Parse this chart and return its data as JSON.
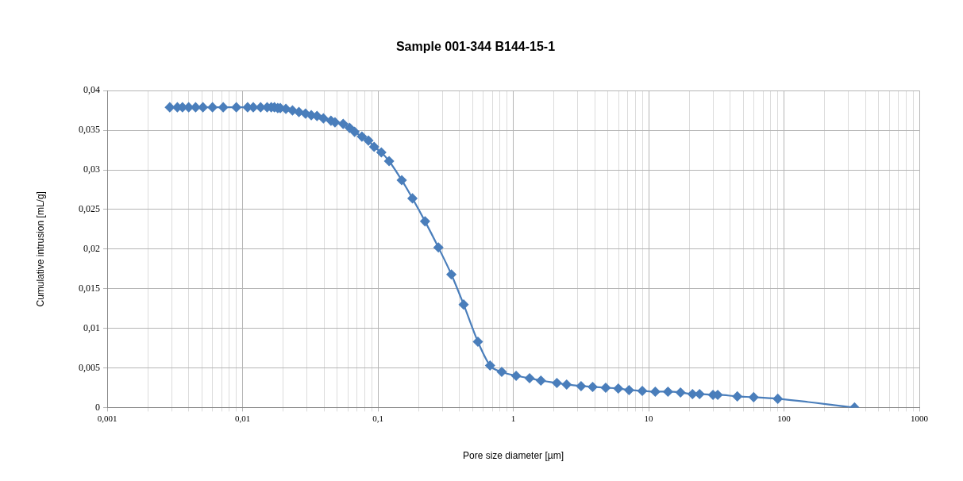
{
  "chart_data": {
    "type": "line",
    "title": "Sample 001-344 B144-15-1",
    "xlabel": "Pore size diameter [µm]",
    "ylabel": "Cumulative intrusion [mL/g]",
    "log": "x",
    "grid": true,
    "legend": false,
    "marker": "diamond",
    "line_style": "solid",
    "xlim": [
      0.001,
      1000
    ],
    "xticks": [
      {
        "value": 0.001,
        "label": "0,001"
      },
      {
        "value": 0.002,
        "label": null
      },
      {
        "value": 0.003,
        "label": null
      },
      {
        "value": 0.004,
        "label": null
      },
      {
        "value": 0.005,
        "label": null
      },
      {
        "value": 0.006,
        "label": null
      },
      {
        "value": 0.007,
        "label": null
      },
      {
        "value": 0.008,
        "label": null
      },
      {
        "value": 0.009,
        "label": null
      },
      {
        "value": 0.01,
        "label": "0,01"
      },
      {
        "value": 0.02,
        "label": null
      },
      {
        "value": 0.03,
        "label": null
      },
      {
        "value": 0.04,
        "label": null
      },
      {
        "value": 0.05,
        "label": null
      },
      {
        "value": 0.06,
        "label": null
      },
      {
        "value": 0.07,
        "label": null
      },
      {
        "value": 0.08,
        "label": null
      },
      {
        "value": 0.09,
        "label": null
      },
      {
        "value": 0.1,
        "label": "0,1"
      },
      {
        "value": 0.2,
        "label": null
      },
      {
        "value": 0.3,
        "label": null
      },
      {
        "value": 0.4,
        "label": null
      },
      {
        "value": 0.5,
        "label": null
      },
      {
        "value": 0.6,
        "label": null
      },
      {
        "value": 0.7,
        "label": null
      },
      {
        "value": 0.8,
        "label": null
      },
      {
        "value": 0.9,
        "label": null
      },
      1,
      {
        "value": 2,
        "label": null
      },
      {
        "value": 3,
        "label": null
      },
      {
        "value": 4,
        "label": null
      },
      {
        "value": 5,
        "label": null
      },
      {
        "value": 6,
        "label": null
      },
      {
        "value": 7,
        "label": null
      },
      {
        "value": 8,
        "label": null
      },
      {
        "value": 9,
        "label": null
      },
      10,
      {
        "value": 20,
        "label": null
      },
      {
        "value": 30,
        "label": null
      },
      {
        "value": 40,
        "label": null
      },
      {
        "value": 50,
        "label": null
      },
      {
        "value": 60,
        "label": null
      },
      {
        "value": 70,
        "label": null
      },
      {
        "value": 80,
        "label": null
      },
      {
        "value": 90,
        "label": null
      },
      100,
      {
        "value": 200,
        "label": null
      },
      {
        "value": 300,
        "label": null
      },
      {
        "value": 400,
        "label": null
      },
      {
        "value": 500,
        "label": null
      },
      {
        "value": 600,
        "label": null
      },
      {
        "value": 700,
        "label": null
      },
      {
        "value": 800,
        "label": null
      },
      {
        "value": 900,
        "label": null
      },
      1000
    ],
    "ylim": [
      0,
      0.04
    ],
    "yticks": [
      0,
      {
        "value": 0.005,
        "label": "0,005"
      },
      {
        "value": 0.01,
        "label": "0,01"
      },
      {
        "value": 0.015,
        "label": "0,015"
      },
      {
        "value": 0.02,
        "label": "0,02"
      },
      {
        "value": 0.025,
        "label": "0,025"
      },
      {
        "value": 0.03,
        "label": "0,03"
      },
      {
        "value": 0.035,
        "label": "0,035"
      },
      {
        "value": 0.04,
        "label": "0,04"
      }
    ],
    "series": [
      {
        "color": "#4a7ebb",
        "x": [
          0.0029,
          0.0033,
          0.0036,
          0.004,
          0.0045,
          0.0051,
          0.006,
          0.0072,
          0.009,
          0.0109,
          0.012,
          0.0136,
          0.0152,
          0.0163,
          0.0172,
          0.0182,
          0.019,
          0.0209,
          0.0234,
          0.0261,
          0.0292,
          0.0322,
          0.0355,
          0.0396,
          0.045,
          0.0482,
          0.0554,
          0.0618,
          0.0673,
          0.0762,
          0.0851,
          0.0938,
          0.106,
          0.121,
          0.15,
          0.18,
          0.223,
          0.28,
          0.349,
          0.43,
          0.548,
          0.674,
          0.822,
          1.05,
          1.32,
          1.6,
          2.1,
          2.48,
          3.17,
          3.86,
          4.82,
          5.97,
          7.17,
          8.98,
          11.2,
          13.9,
          17.2,
          21.1,
          23.8,
          29.9,
          32.4,
          45.2,
          59.7,
          90,
          332
        ],
        "values": [
          0.0379,
          0.0379,
          0.0379,
          0.0379,
          0.0379,
          0.0379,
          0.0379,
          0.0379,
          0.0379,
          0.0379,
          0.0379,
          0.0379,
          0.0379,
          0.0379,
          0.0379,
          0.0378,
          0.0378,
          0.0377,
          0.0375,
          0.0373,
          0.0371,
          0.0369,
          0.0368,
          0.0365,
          0.0362,
          0.036,
          0.0358,
          0.0353,
          0.0348,
          0.0342,
          0.0337,
          0.0329,
          0.0322,
          0.0311,
          0.0287,
          0.0264,
          0.0235,
          0.0202,
          0.0168,
          0.013,
          0.0083,
          0.0053,
          0.0045,
          0.004,
          0.0037,
          0.0034,
          0.0031,
          0.0029,
          0.0027,
          0.0026,
          0.0025,
          0.0024,
          0.0022,
          0.0021,
          0.002,
          0.002,
          0.0019,
          0.0017,
          0.0017,
          0.0016,
          0.0016,
          0.0014,
          0.0013,
          0.0011,
          0
        ]
      }
    ]
  }
}
